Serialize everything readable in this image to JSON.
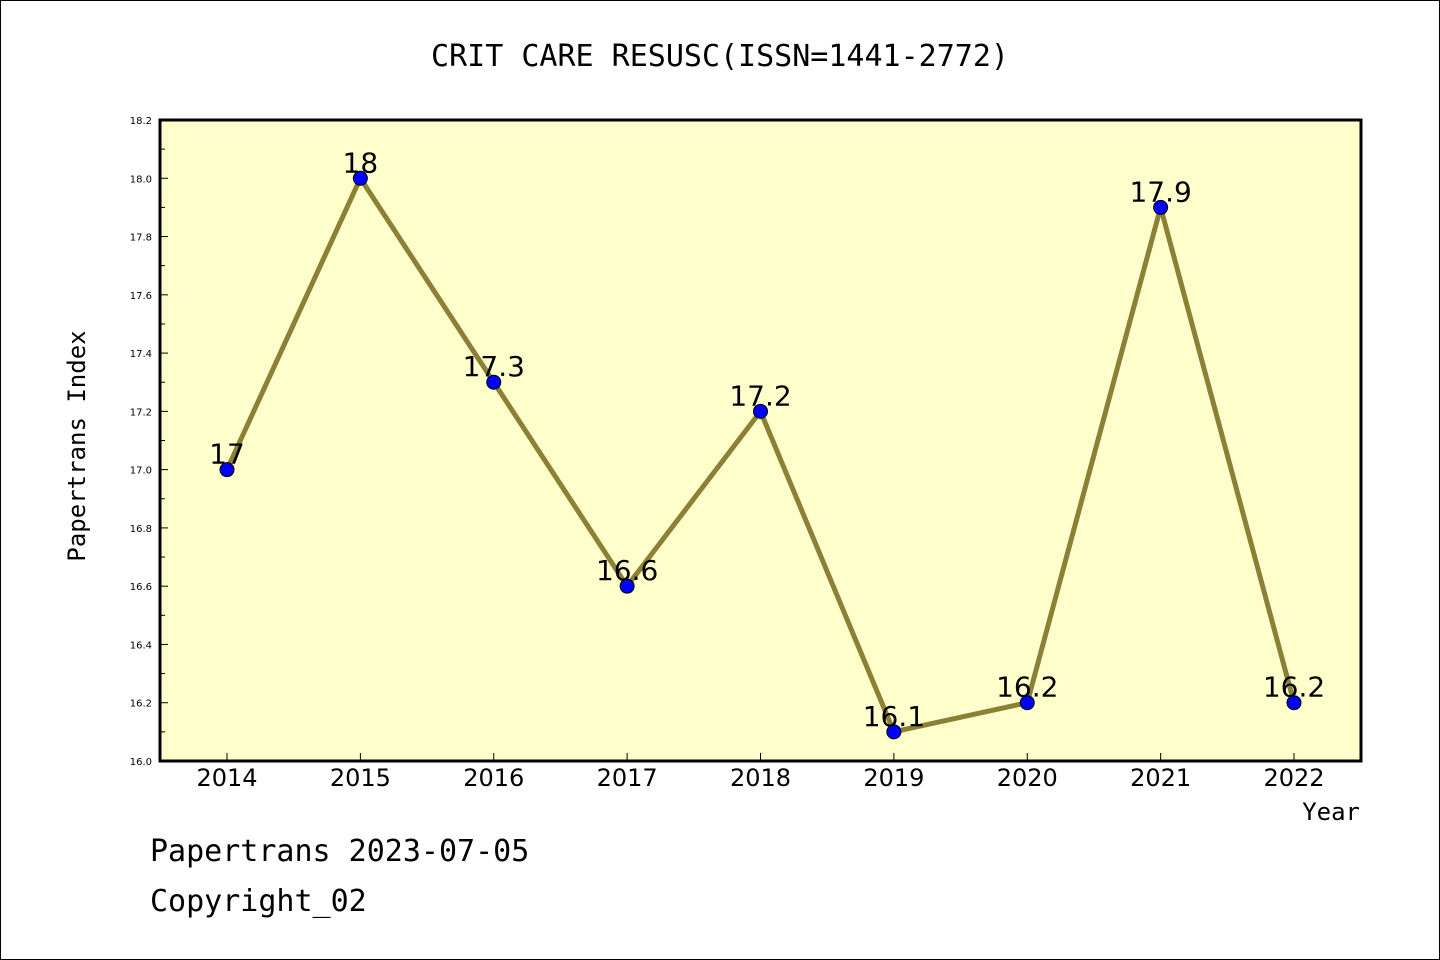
{
  "chart_data": {
    "type": "line",
    "title": "CRIT CARE RESUSC(ISSN=1441-2772)",
    "xlabel": "Year",
    "ylabel": "Papertrans Index",
    "categories": [
      "2014",
      "2015",
      "2016",
      "2017",
      "2018",
      "2019",
      "2020",
      "2021",
      "2022"
    ],
    "series": [
      {
        "values": [
          17,
          18,
          17.3,
          16.6,
          17.2,
          16.1,
          16.2,
          17.9,
          16.2
        ],
        "labels": [
          "17",
          "18",
          "17.3",
          "16.6",
          "17.2",
          "16.1",
          "16.2",
          "17.9",
          "16.2"
        ]
      }
    ],
    "ylim": [
      16.0,
      18.2
    ],
    "yticks": [
      "16.0",
      "16.2",
      "16.4",
      "16.6",
      "16.8",
      "17.0",
      "17.2",
      "17.4",
      "17.6",
      "17.8",
      "18.0",
      "18.2"
    ],
    "grid": false,
    "colors": {
      "plot_background": "#ffffcc",
      "line": "#8b8036",
      "marker": "#0000ff"
    }
  },
  "footer": {
    "date": "Papertrans 2023-07-05",
    "copyright": "Copyright_02"
  }
}
